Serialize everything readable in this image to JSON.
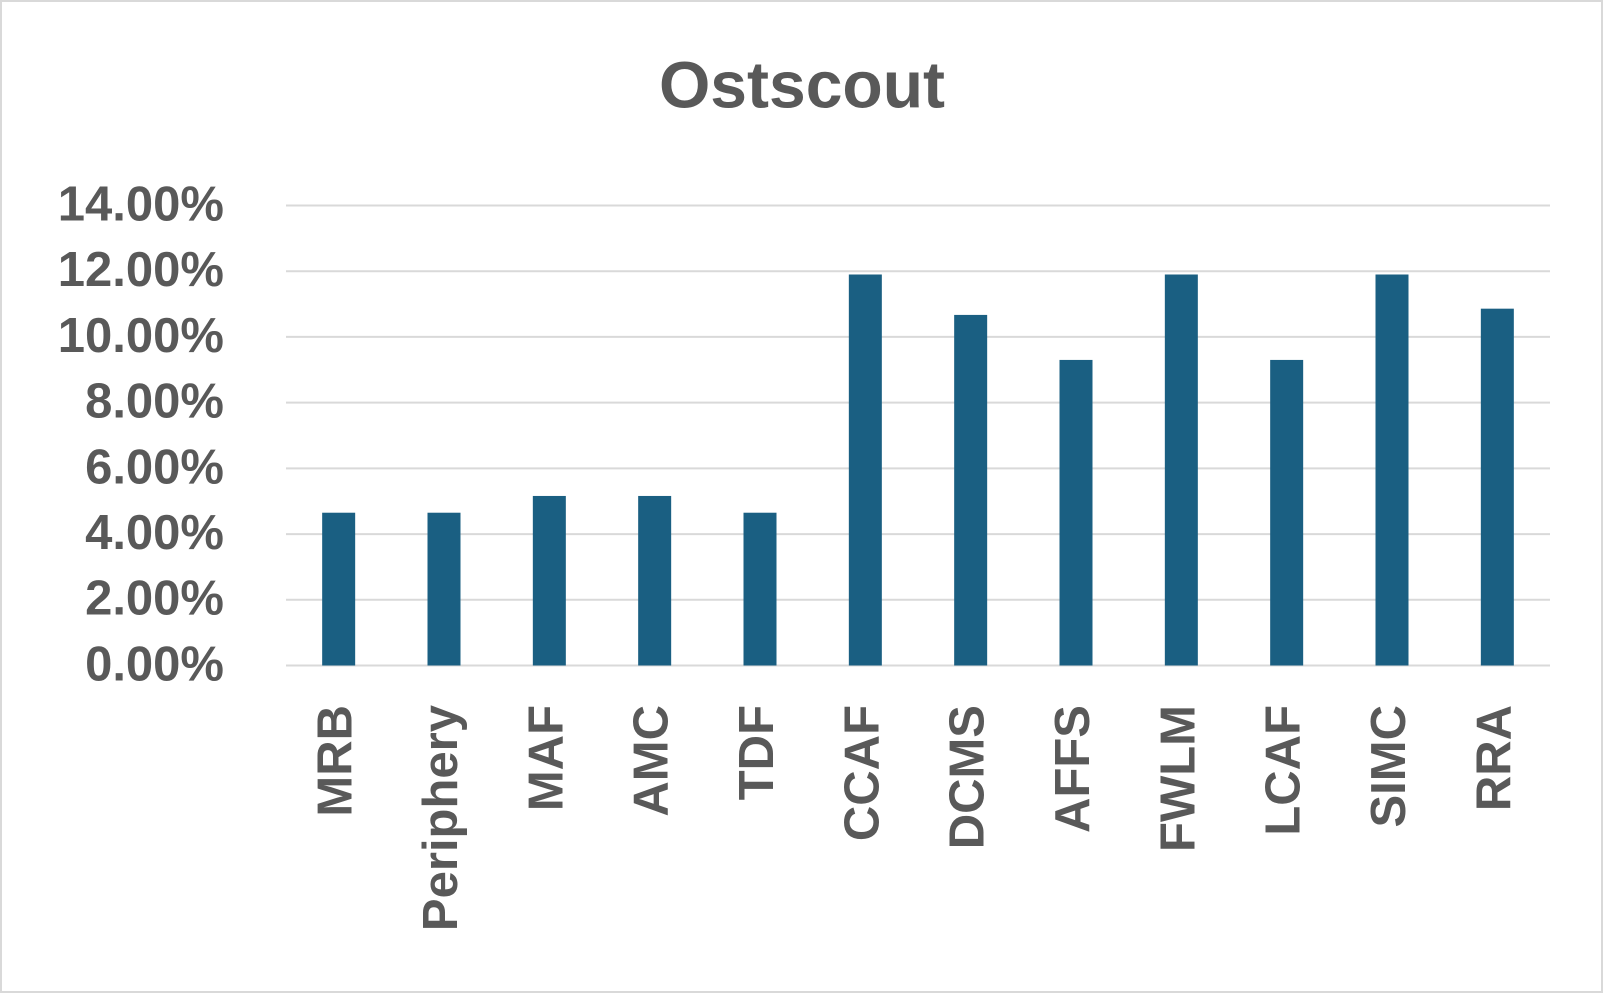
{
  "chart_data": {
    "type": "bar",
    "title": "Ostscout",
    "categories": [
      "MRB",
      "Periphery",
      "MAF",
      "AMC",
      "TDF",
      "CCAF",
      "DCMS",
      "AFFS",
      "FWLM",
      "LCAF",
      "SIMC",
      "RRA"
    ],
    "values": [
      4.65,
      4.65,
      5.16,
      5.16,
      4.65,
      11.9,
      10.67,
      9.3,
      11.9,
      9.3,
      11.9,
      10.86
    ],
    "color": "#1a5f82",
    "ylim": [
      0,
      14
    ],
    "yticks": [
      {
        "value": 0,
        "label": "0.00%"
      },
      {
        "value": 2,
        "label": "2.00%"
      },
      {
        "value": 4,
        "label": "4.00%"
      },
      {
        "value": 6,
        "label": "6.00%"
      },
      {
        "value": 8,
        "label": "8.00%"
      },
      {
        "value": 10,
        "label": "10.00%"
      },
      {
        "value": 12,
        "label": "12.00%"
      },
      {
        "value": 14,
        "label": "14.00%"
      }
    ],
    "grid": true
  }
}
